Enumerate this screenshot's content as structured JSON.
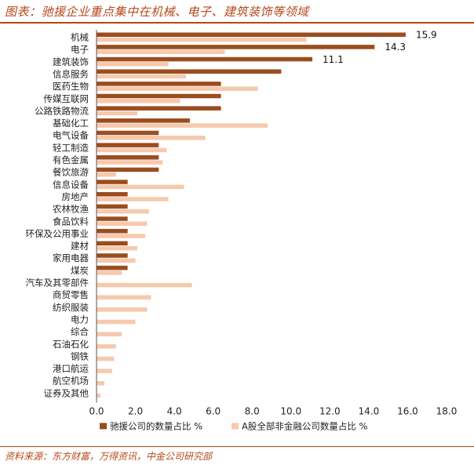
{
  "title": "图表：驰援企业重点集中在机械、电子、建筑装饰等领域",
  "source": "资料来源：东方财富，万得资讯，中金公司研究部",
  "chart_data": {
    "type": "bar",
    "orientation": "horizontal",
    "categories": [
      "机械",
      "电子",
      "建筑装饰",
      "信息服务",
      "医药生物",
      "传媒互联网",
      "公路铁路物流",
      "基础化工",
      "电气设备",
      "轻工制造",
      "有色金属",
      "餐饮旅游",
      "信息设备",
      "房地产",
      "农林牧渔",
      "食品饮料",
      "环保及公用事业",
      "建材",
      "家用电器",
      "煤炭",
      "汽车及其零部件",
      "商贸零售",
      "纺织服装",
      "电力",
      "综合",
      "石油石化",
      "钢铁",
      "港口航运",
      "航空机场",
      "证券及其他"
    ],
    "series": [
      {
        "name": "驰援公司的数量占比 %",
        "color": "#9a4d1f",
        "values": [
          15.9,
          14.3,
          11.1,
          9.5,
          6.4,
          6.4,
          6.4,
          4.8,
          3.2,
          3.2,
          3.2,
          3.2,
          1.6,
          1.6,
          1.6,
          1.6,
          1.6,
          1.6,
          1.6,
          1.6,
          0,
          0,
          0,
          0,
          0,
          0,
          0,
          0,
          0,
          0
        ]
      },
      {
        "name": "A股全部非金融公司数量占比 %",
        "color": "#f6c9ad",
        "values": [
          10.8,
          6.6,
          3.7,
          4.6,
          8.3,
          4.3,
          2.1,
          8.8,
          5.6,
          3.6,
          3.4,
          1.0,
          4.5,
          3.7,
          2.7,
          2.6,
          2.5,
          2.1,
          2.0,
          1.3,
          4.9,
          2.8,
          2.6,
          2.0,
          1.3,
          1.0,
          0.9,
          0.8,
          0.4,
          0.2
        ]
      }
    ],
    "data_labels": [
      {
        "category": "机械",
        "text": "15.9"
      },
      {
        "category": "电子",
        "text": "14.3"
      },
      {
        "category": "建筑装饰",
        "text": "11.1"
      }
    ],
    "xlim": [
      0,
      18
    ],
    "xticks": [
      "0.0",
      "2.0",
      "4.0",
      "6.0",
      "8.0",
      "10.0",
      "12.0",
      "14.0",
      "16.0",
      "18.0"
    ],
    "legend_position": "bottom",
    "grid": false
  }
}
